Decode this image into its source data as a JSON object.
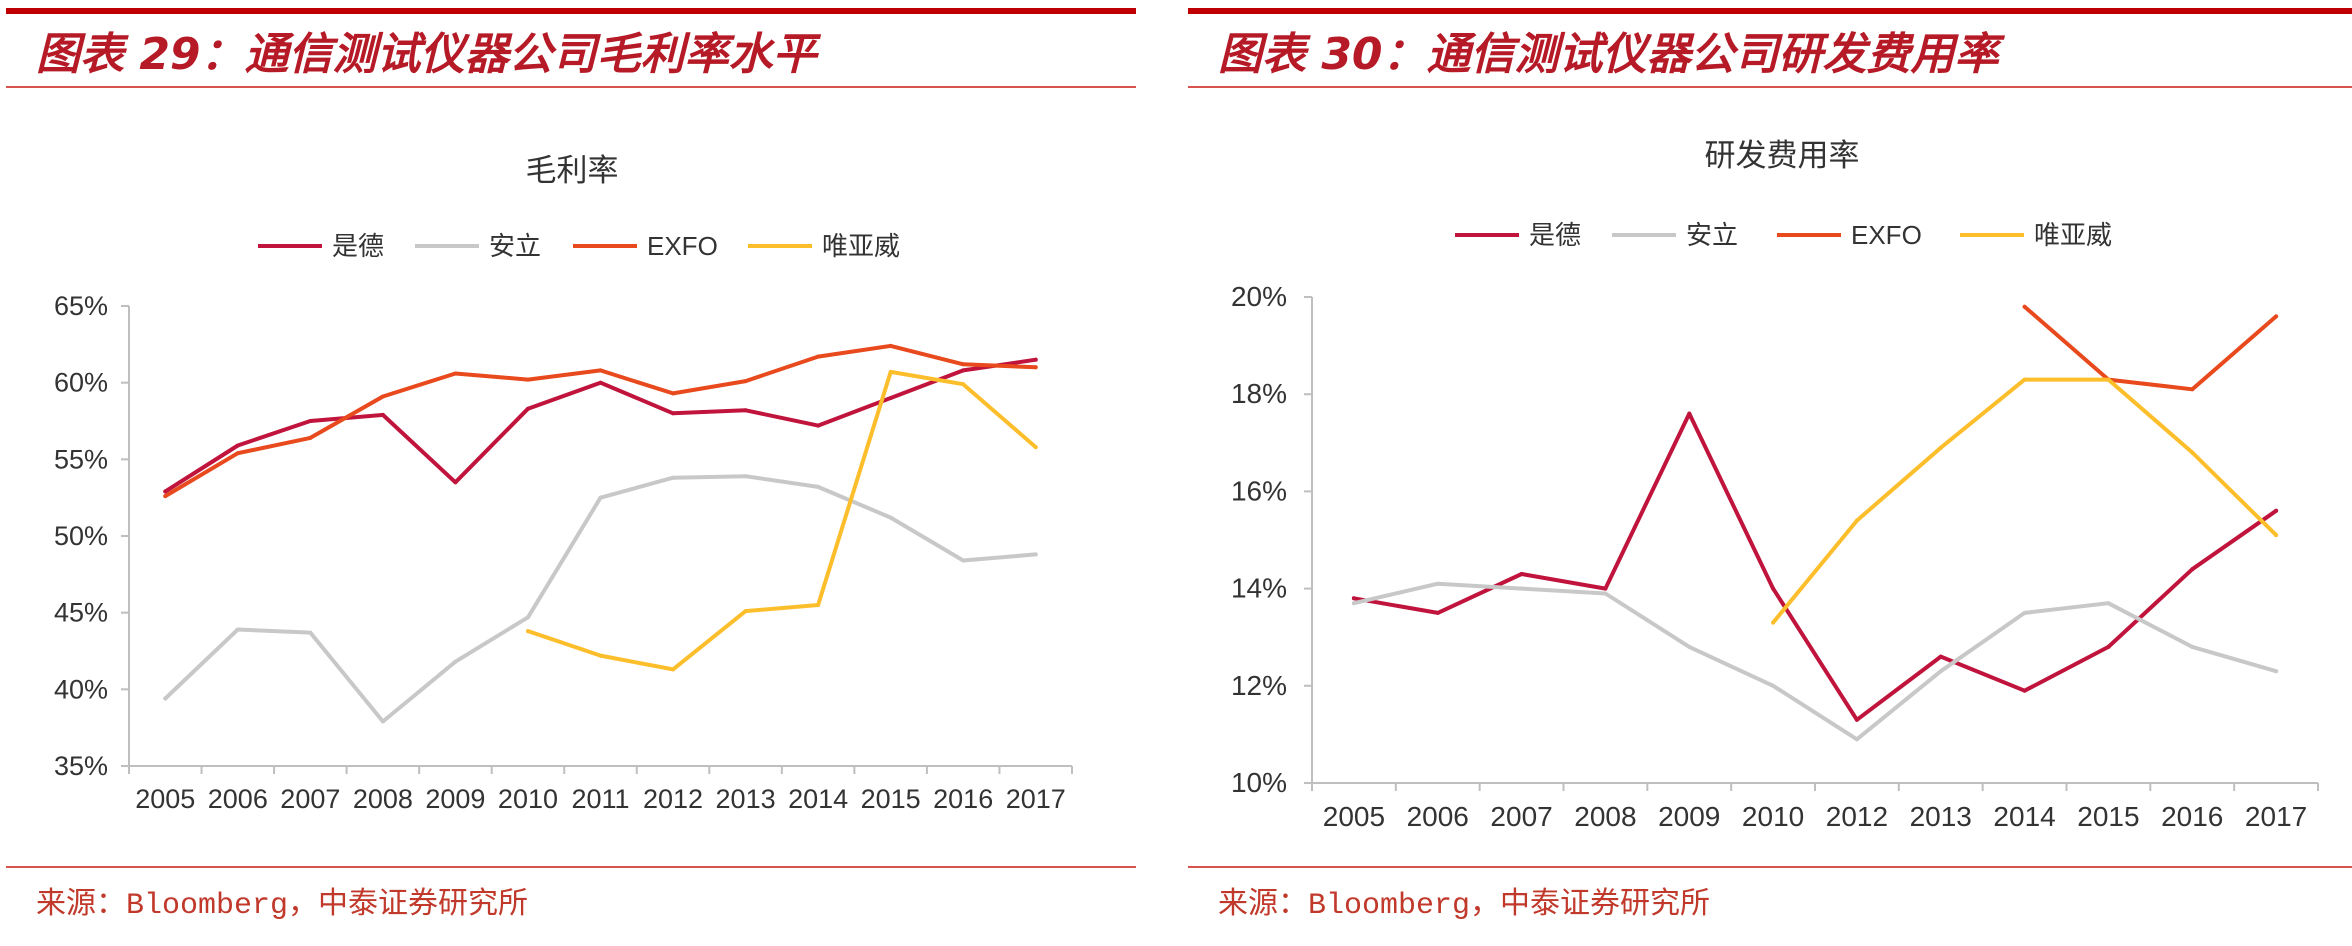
{
  "panels": [
    {
      "figure_title": "图表 29：通信测试仪器公司毛利率水平",
      "source": "来源：Bloomberg，中泰证券研究所"
    },
    {
      "figure_title": "图表 30：通信测试仪器公司研发费用率",
      "source": "来源：Bloomberg，中泰证券研究所"
    }
  ],
  "theme": {
    "accent": "#C00000",
    "title": "#B51A26",
    "rule": "#D9534F",
    "source": "#C0392B",
    "axis": "#BFBFBF",
    "text": "#333333"
  },
  "chart_data": [
    {
      "type": "line",
      "title": "毛利率",
      "categories": [
        "2005",
        "2006",
        "2007",
        "2008",
        "2009",
        "2010",
        "2011",
        "2012",
        "2013",
        "2014",
        "2015",
        "2016",
        "2017"
      ],
      "ylim": [
        35,
        65
      ],
      "yticks": [
        35,
        40,
        45,
        50,
        55,
        60,
        65
      ],
      "ytick_labels": [
        "35%",
        "40%",
        "45%",
        "50%",
        "55%",
        "60%",
        "65%"
      ],
      "unit": "%",
      "legend": "top",
      "grid": false,
      "series": [
        {
          "name": "是德",
          "color": "#C0143C",
          "values": [
            52.9,
            55.9,
            57.5,
            57.9,
            53.5,
            58.3,
            60.0,
            58.0,
            58.2,
            57.2,
            59.0,
            60.8,
            61.5
          ]
        },
        {
          "name": "安立",
          "color": "#C8C8C8",
          "values": [
            39.4,
            43.9,
            43.7,
            37.9,
            41.8,
            44.7,
            52.5,
            53.8,
            53.9,
            53.2,
            51.2,
            48.4,
            48.8
          ]
        },
        {
          "name": "EXFO",
          "color": "#E8491D",
          "values": [
            52.6,
            55.4,
            56.4,
            59.1,
            60.6,
            60.2,
            60.8,
            59.3,
            60.1,
            61.7,
            62.4,
            61.2,
            61.0
          ]
        },
        {
          "name": "唯亚威",
          "color": "#FDBE2C",
          "values": [
            null,
            null,
            null,
            null,
            null,
            43.8,
            42.2,
            41.3,
            45.1,
            45.5,
            60.7,
            59.9,
            55.8
          ]
        }
      ]
    },
    {
      "type": "line",
      "title": "研发费用率",
      "categories": [
        "2005",
        "2006",
        "2007",
        "2008",
        "2009",
        "2010",
        "2012",
        "2013",
        "2014",
        "2015",
        "2016",
        "2017"
      ],
      "ylim": [
        10,
        20
      ],
      "yticks": [
        10,
        12,
        14,
        16,
        18,
        20
      ],
      "ytick_labels": [
        "10%",
        "12%",
        "14%",
        "16%",
        "18%",
        "20%"
      ],
      "unit": "%",
      "legend": "top",
      "grid": false,
      "series": [
        {
          "name": "是德",
          "color": "#C0143C",
          "values": [
            13.8,
            13.5,
            14.3,
            14.0,
            17.6,
            14.0,
            11.3,
            12.6,
            11.9,
            12.8,
            14.4,
            15.6
          ]
        },
        {
          "name": "安立",
          "color": "#C8C8C8",
          "values": [
            13.7,
            14.1,
            14.0,
            13.9,
            12.8,
            12.0,
            10.9,
            12.3,
            13.5,
            13.7,
            12.8,
            12.3
          ]
        },
        {
          "name": "EXFO",
          "color": "#E8491D",
          "values": [
            null,
            null,
            null,
            null,
            null,
            null,
            null,
            null,
            19.8,
            18.3,
            18.1,
            19.6
          ]
        },
        {
          "name": "唯亚威",
          "color": "#FDBE2C",
          "values": [
            null,
            null,
            null,
            null,
            null,
            13.3,
            15.4,
            16.9,
            18.3,
            18.3,
            16.8,
            15.1
          ]
        }
      ]
    }
  ]
}
